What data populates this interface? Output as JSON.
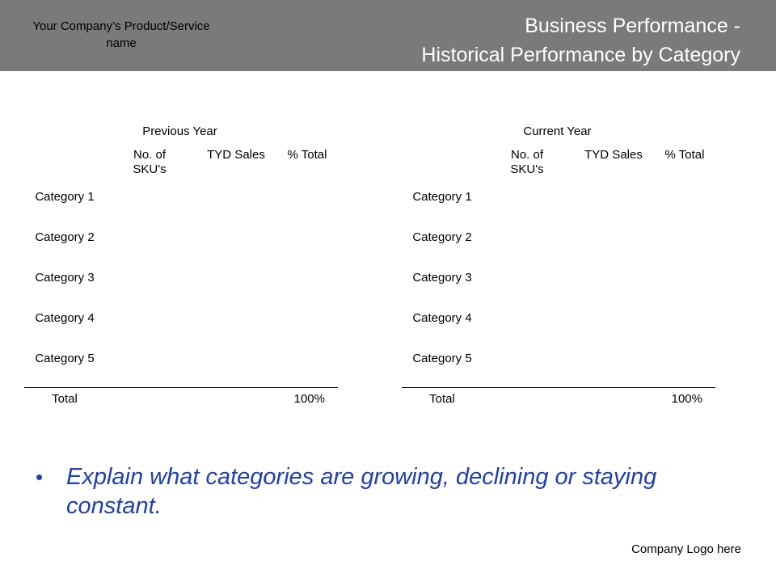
{
  "header": {
    "company_product": "Your Company’s Product/Service name",
    "title_line1": "Business Performance -",
    "title_line2": "Historical Performance by Category"
  },
  "tables": [
    {
      "year": "Previous Year",
      "columns": [
        "No. of SKU's",
        "TYD Sales",
        "% Total"
      ],
      "rows": [
        "Category 1",
        "Category 2",
        "Category 3",
        "Category 4",
        "Category 5"
      ],
      "total_label": "Total",
      "total_value": "100%"
    },
    {
      "year": "Current Year",
      "columns": [
        "No. of SKU's",
        "TYD Sales",
        "% Total"
      ],
      "rows": [
        "Category 1",
        "Category 2",
        "Category 3",
        "Category 4",
        "Category 5"
      ],
      "total_label": "Total",
      "total_value": "100%"
    }
  ],
  "note": {
    "bullet": "•",
    "text": "Explain what categories are growing, declining or staying constant."
  },
  "footer": {
    "logo_text": "Company Logo here"
  },
  "colors": {
    "header_bg": "#7a7a7a",
    "title_text": "#ffffff",
    "note_text": "#1f3fb5"
  }
}
